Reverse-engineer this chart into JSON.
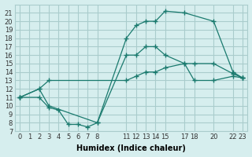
{
  "xlabel": "Humidex (Indice chaleur)",
  "ylabel": "",
  "background_color": "#d6eeee",
  "grid_color": "#aacccc",
  "line_color": "#1a7a6e",
  "xlim": [
    -0.5,
    23.5
  ],
  "ylim": [
    7,
    22
  ],
  "xticks": [
    0,
    1,
    2,
    3,
    4,
    5,
    6,
    7,
    8,
    11,
    12,
    13,
    14,
    15,
    17,
    18,
    20,
    22,
    23
  ],
  "yticks": [
    7,
    8,
    9,
    10,
    11,
    12,
    13,
    14,
    15,
    16,
    17,
    18,
    19,
    20,
    21
  ],
  "lines": [
    {
      "x": [
        0,
        2,
        3,
        8,
        11,
        12,
        13,
        14,
        15,
        17,
        20,
        22,
        23
      ],
      "y": [
        11,
        12,
        10,
        8,
        18,
        19.5,
        20,
        20,
        21.2,
        21,
        20,
        14,
        13.3
      ]
    },
    {
      "x": [
        0,
        2,
        3,
        4,
        5,
        6,
        7,
        8,
        11,
        12,
        13,
        14,
        15,
        17,
        18,
        20,
        22,
        23
      ],
      "y": [
        11,
        11,
        9.8,
        9.5,
        7.8,
        7.8,
        7.5,
        8,
        16,
        16,
        17,
        17,
        16,
        15,
        15,
        15,
        13.8,
        13.3
      ]
    },
    {
      "x": [
        0,
        2,
        3,
        11,
        12,
        13,
        14,
        15,
        17,
        18,
        20,
        22,
        23
      ],
      "y": [
        11,
        12,
        13,
        13,
        13.5,
        14,
        14,
        14.5,
        15,
        13,
        13,
        13.5,
        13.3
      ]
    }
  ]
}
